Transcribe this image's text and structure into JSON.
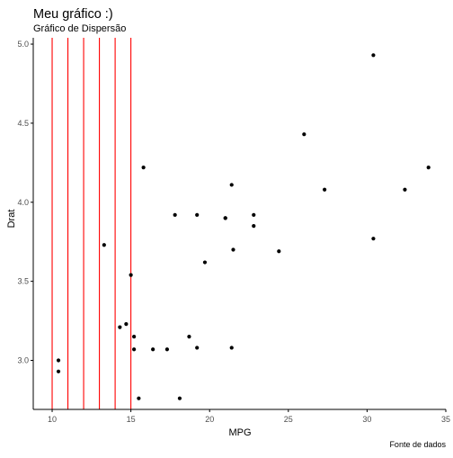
{
  "chart_data": {
    "type": "scatter",
    "title": "Meu gráfico :)",
    "subtitle": "Gráfico de Dispersão",
    "caption": "Fonte de dados",
    "xlabel": "MPG",
    "ylabel": "Drat",
    "xlim": [
      8.8,
      35.0
    ],
    "ylim": [
      2.69,
      5.04
    ],
    "x_ticks": [
      10,
      15,
      20,
      25,
      30,
      35
    ],
    "y_ticks": [
      3.0,
      3.5,
      4.0,
      4.5,
      5.0
    ],
    "x_tick_labels": [
      "10",
      "15",
      "20",
      "25",
      "30",
      "35"
    ],
    "y_tick_labels": [
      "3.0",
      "3.5",
      "4.0",
      "4.5",
      "5.0"
    ],
    "grid": false,
    "vlines": {
      "x": [
        10,
        11,
        12,
        13,
        14,
        15
      ],
      "color": "#ff0000"
    },
    "point_color": "#000000",
    "axis_color": "#000000",
    "points": [
      {
        "x": 21.0,
        "y": 3.9
      },
      {
        "x": 21.0,
        "y": 3.9
      },
      {
        "x": 22.8,
        "y": 3.85
      },
      {
        "x": 21.4,
        "y": 3.08
      },
      {
        "x": 18.7,
        "y": 3.15
      },
      {
        "x": 18.1,
        "y": 2.76
      },
      {
        "x": 14.3,
        "y": 3.21
      },
      {
        "x": 24.4,
        "y": 3.69
      },
      {
        "x": 22.8,
        "y": 3.92
      },
      {
        "x": 19.2,
        "y": 3.92
      },
      {
        "x": 17.8,
        "y": 3.92
      },
      {
        "x": 16.4,
        "y": 3.07
      },
      {
        "x": 17.3,
        "y": 3.07
      },
      {
        "x": 15.2,
        "y": 3.07
      },
      {
        "x": 10.4,
        "y": 2.93
      },
      {
        "x": 10.4,
        "y": 3.0
      },
      {
        "x": 14.7,
        "y": 3.23
      },
      {
        "x": 32.4,
        "y": 4.08
      },
      {
        "x": 30.4,
        "y": 4.93
      },
      {
        "x": 33.9,
        "y": 4.22
      },
      {
        "x": 21.5,
        "y": 3.7
      },
      {
        "x": 15.5,
        "y": 2.76
      },
      {
        "x": 15.2,
        "y": 3.15
      },
      {
        "x": 13.3,
        "y": 3.73
      },
      {
        "x": 19.2,
        "y": 3.08
      },
      {
        "x": 27.3,
        "y": 4.08
      },
      {
        "x": 26.0,
        "y": 4.43
      },
      {
        "x": 30.4,
        "y": 3.77
      },
      {
        "x": 15.8,
        "y": 4.22
      },
      {
        "x": 19.7,
        "y": 3.62
      },
      {
        "x": 15.0,
        "y": 3.54
      },
      {
        "x": 21.4,
        "y": 4.11
      }
    ]
  }
}
